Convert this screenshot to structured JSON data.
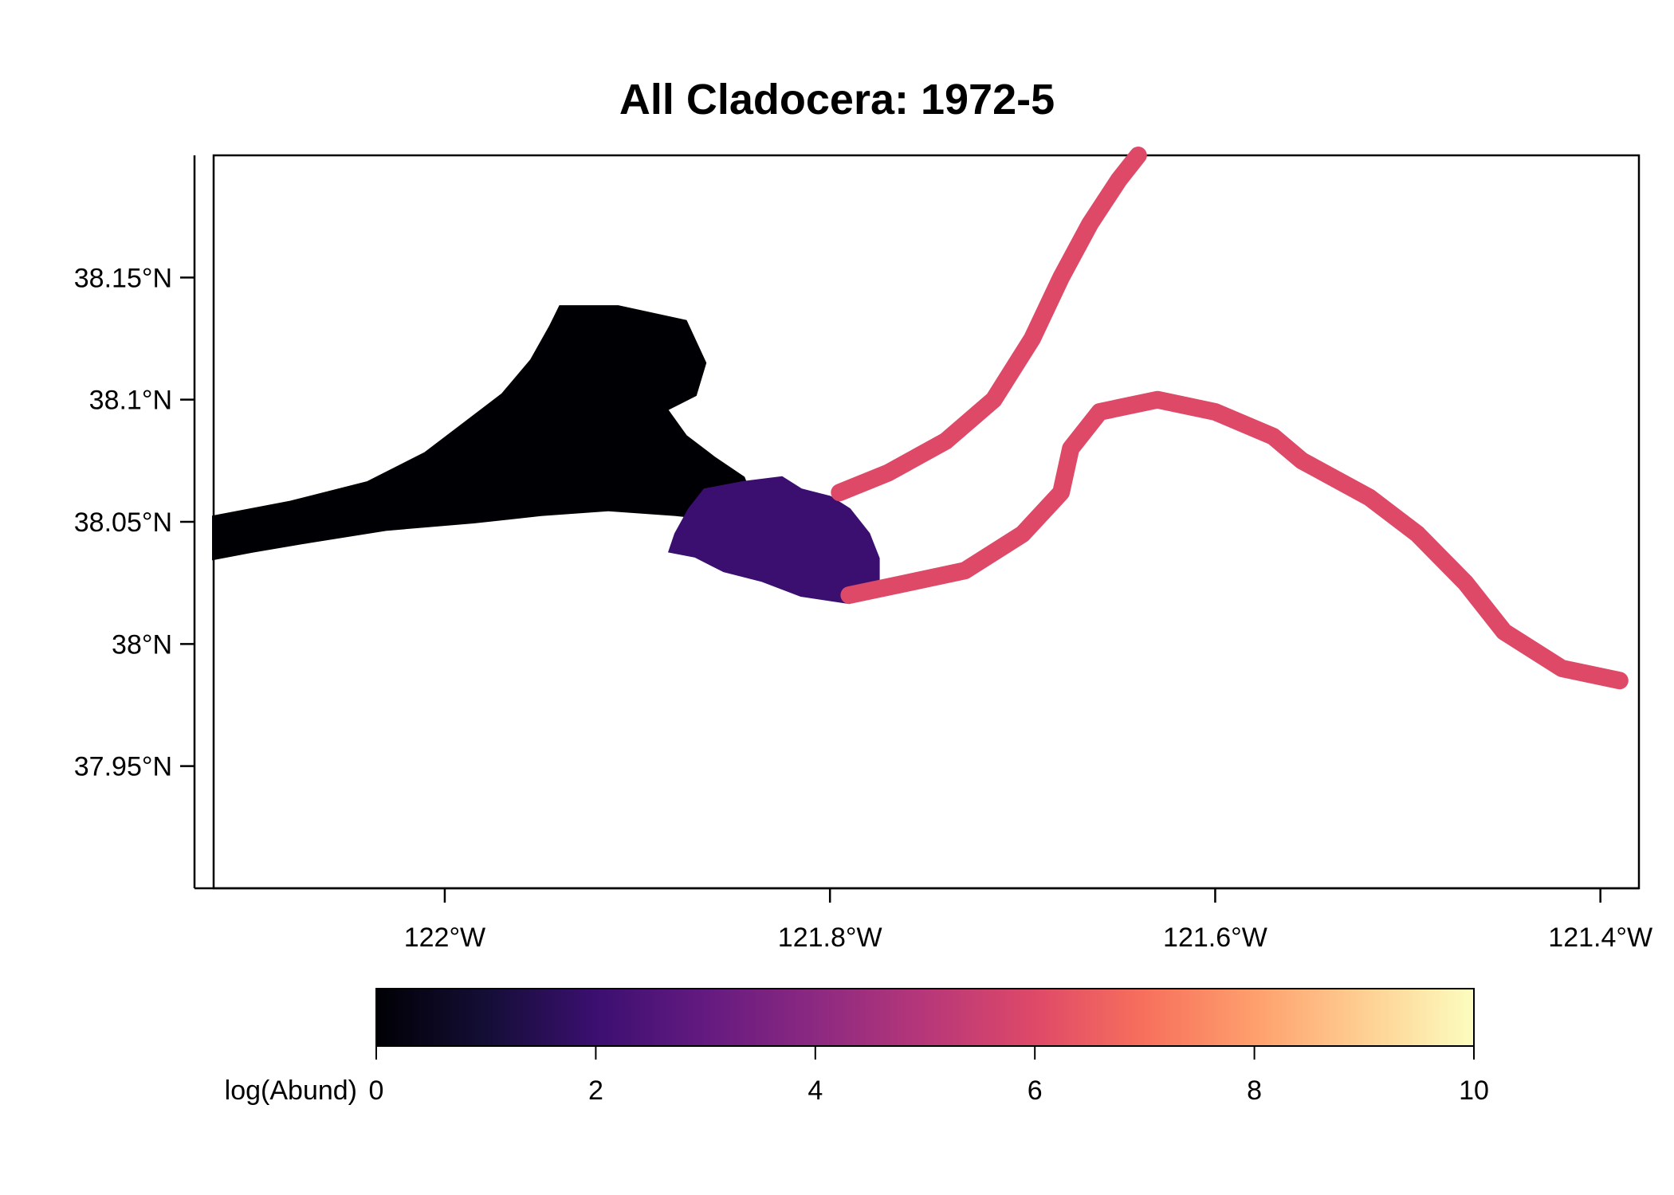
{
  "figure": {
    "title": "All Cladocera: 1972-5",
    "y_ticks": [
      {
        "label": "38.15°N",
        "lat": 38.15
      },
      {
        "label": "38.1°N",
        "lat": 38.1
      },
      {
        "label": "38.05°N",
        "lat": 38.05
      },
      {
        "label": "38°N",
        "lat": 38.0
      },
      {
        "label": "37.95°N",
        "lat": 37.95
      }
    ],
    "x_ticks": [
      {
        "label": "122°W",
        "lon": -122.0
      },
      {
        "label": "121.8°W",
        "lon": -121.8
      },
      {
        "label": "121.6°W",
        "lon": -121.6
      },
      {
        "label": "121.4°W",
        "lon": -121.4
      }
    ],
    "extent": {
      "lon_min": -122.12,
      "lon_max": -121.38,
      "lat_min": 37.9,
      "lat_max": 38.2
    },
    "legend": {
      "label": "log(Abund)",
      "min": 0,
      "max": 10,
      "ticks": [
        "0",
        "2",
        "4",
        "6",
        "8",
        "10"
      ],
      "palette": [
        "#000004",
        "#140e36",
        "#3b0f70",
        "#641a80",
        "#8c2981",
        "#b73779",
        "#de4968",
        "#f7705c",
        "#fe9f6d",
        "#fecf92",
        "#fcfdbf"
      ]
    }
  },
  "map_layers": [
    {
      "region": "western-bay",
      "log_abund": 0.2,
      "path": [
        [
          -122.12,
          38.035
        ],
        [
          -122.12,
          38.052
        ],
        [
          -122.08,
          38.058
        ],
        [
          -122.04,
          38.066
        ],
        [
          -122.01,
          38.078
        ],
        [
          -121.99,
          38.09
        ],
        [
          -121.97,
          38.102
        ],
        [
          -121.955,
          38.116
        ],
        [
          -121.945,
          38.13
        ],
        [
          -121.94,
          38.138
        ],
        [
          -121.91,
          38.138
        ],
        [
          -121.875,
          38.132
        ],
        [
          -121.865,
          38.115
        ],
        [
          -121.87,
          38.102
        ],
        [
          -121.885,
          38.096
        ],
        [
          -121.875,
          38.085
        ],
        [
          -121.86,
          38.076
        ],
        [
          -121.845,
          38.068
        ],
        [
          -121.84,
          38.058
        ],
        [
          -121.845,
          38.05
        ],
        [
          -121.88,
          38.053
        ],
        [
          -121.915,
          38.055
        ],
        [
          -121.95,
          38.053
        ],
        [
          -121.985,
          38.05
        ],
        [
          -122.03,
          38.047
        ],
        [
          -122.07,
          38.042
        ],
        [
          -122.1,
          38.038
        ]
      ]
    },
    {
      "region": "central-delta",
      "log_abund": 1.5,
      "path": [
        [
          -121.775,
          38.035
        ],
        [
          -121.78,
          38.045
        ],
        [
          -121.79,
          38.055
        ],
        [
          -121.8,
          38.06
        ],
        [
          -121.815,
          38.063
        ],
        [
          -121.825,
          38.068
        ],
        [
          -121.845,
          38.066
        ],
        [
          -121.865,
          38.063
        ],
        [
          -121.873,
          38.055
        ],
        [
          -121.88,
          38.045
        ],
        [
          -121.883,
          38.038
        ],
        [
          -121.87,
          38.036
        ],
        [
          -121.855,
          38.03
        ],
        [
          -121.835,
          38.026
        ],
        [
          -121.815,
          38.02
        ],
        [
          -121.79,
          38.017
        ],
        [
          -121.775,
          38.023
        ]
      ]
    },
    {
      "region": "sacramento-channel",
      "log_abund": 5.5,
      "width_km": 0.9,
      "path": [
        [
          -121.795,
          38.062
        ],
        [
          -121.77,
          38.07
        ],
        [
          -121.74,
          38.083
        ],
        [
          -121.715,
          38.1
        ],
        [
          -121.695,
          38.125
        ],
        [
          -121.68,
          38.15
        ],
        [
          -121.665,
          38.172
        ],
        [
          -121.65,
          38.19
        ],
        [
          -121.64,
          38.2
        ]
      ]
    },
    {
      "region": "san-joaquin-channel",
      "log_abund": 5.5,
      "width_km": 0.9,
      "path": [
        [
          -121.79,
          38.02
        ],
        [
          -121.76,
          38.025
        ],
        [
          -121.73,
          38.03
        ],
        [
          -121.7,
          38.045
        ],
        [
          -121.68,
          38.062
        ],
        [
          -121.675,
          38.08
        ],
        [
          -121.66,
          38.095
        ],
        [
          -121.63,
          38.1
        ],
        [
          -121.6,
          38.095
        ],
        [
          -121.57,
          38.085
        ],
        [
          -121.555,
          38.075
        ],
        [
          -121.52,
          38.06
        ],
        [
          -121.495,
          38.045
        ],
        [
          -121.47,
          38.025
        ],
        [
          -121.45,
          38.005
        ],
        [
          -121.42,
          37.99
        ],
        [
          -121.39,
          37.985
        ]
      ]
    }
  ]
}
